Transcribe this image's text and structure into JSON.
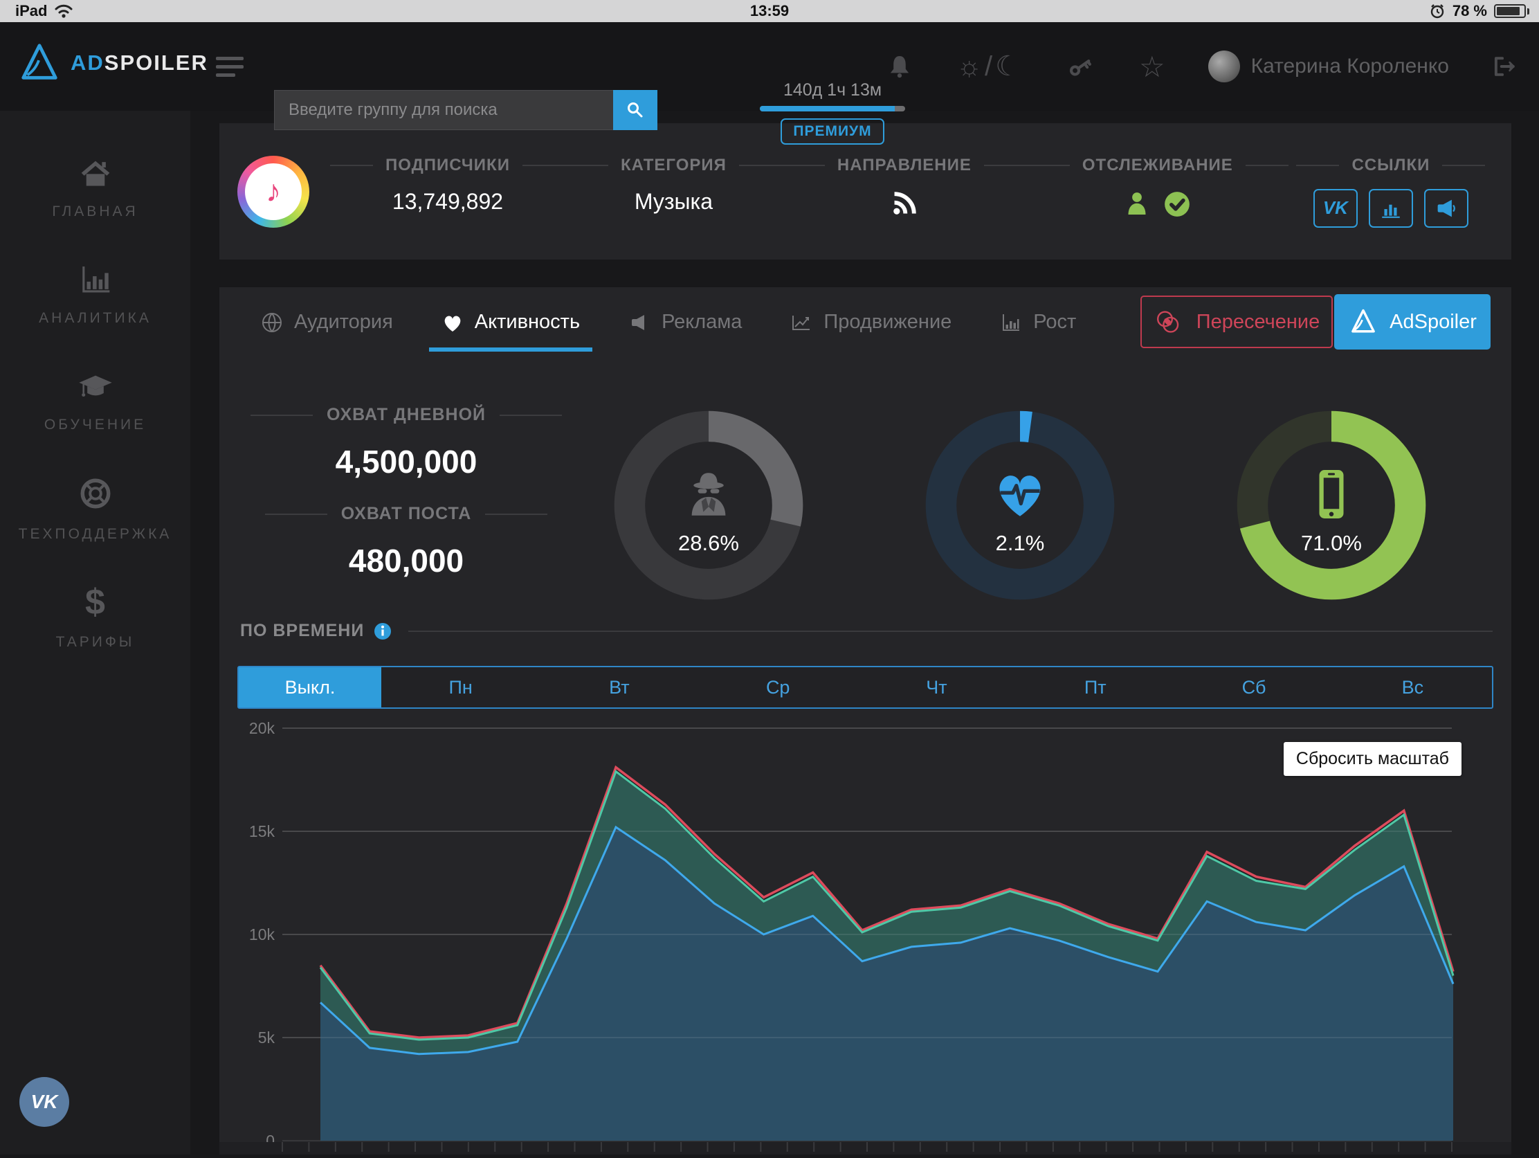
{
  "status_bar": {
    "device": "iPad",
    "time": "13:59",
    "battery": "78 %"
  },
  "navbar": {
    "brand": {
      "prefix": "AD",
      "suffix": "SPOILER"
    },
    "search": {
      "placeholder": "Введите группу для поиска"
    },
    "premium": {
      "time_left": "140д 1ч 13м",
      "badge": "ПРЕМИУМ",
      "progress_percent": 93
    },
    "theme": {
      "sun_glyph": "☼",
      "divider": "/",
      "moon_glyph": "☾"
    },
    "star_glyph": "☆",
    "user_name": "Катерина Короленко"
  },
  "sidebar": {
    "items": [
      {
        "label": "ГЛАВНАЯ",
        "icon": "home-icon"
      },
      {
        "label": "АНАЛИТИКА",
        "icon": "analytics-icon"
      },
      {
        "label": "ОБУЧЕНИЕ",
        "icon": "education-icon"
      },
      {
        "label": "ТЕХПОДДЕРЖКА",
        "icon": "support-icon"
      },
      {
        "label": "ТАРИФЫ",
        "icon": "dollar-icon",
        "icon_glyph": "$"
      }
    ],
    "vk_fab_text": "VK"
  },
  "group_header": {
    "avatar_glyph": "♪",
    "subscribers": {
      "label": "ПОДПИСЧИКИ",
      "value": "13,749,892"
    },
    "category": {
      "label": "КАТЕГОРИЯ",
      "value": "Музыка"
    },
    "direction": {
      "label": "НАПРАВЛЕНИЕ",
      "icon": "rss-icon"
    },
    "tracking": {
      "label": "ОТСЛЕЖИВАНИЕ",
      "icons": [
        "person-icon",
        "check-circle-icon"
      ]
    },
    "links": {
      "label": "ССЫЛКИ",
      "icons": [
        "vk-icon",
        "bar-chart-icon",
        "megaphone-icon"
      ],
      "vk_text": "VK"
    }
  },
  "tabs": {
    "items": [
      {
        "label": "Аудитория",
        "icon": "globe-icon",
        "active": false
      },
      {
        "label": "Активность",
        "icon": "heart-icon",
        "active": true
      },
      {
        "label": "Реклама",
        "icon": "megaphone-icon",
        "active": false
      },
      {
        "label": "Продвижение",
        "icon": "promotion-chart-icon",
        "active": false
      },
      {
        "label": "Рост",
        "icon": "growth-chart-icon",
        "active": false
      }
    ],
    "intersection_button": "Пересечение",
    "adspoiler_button": "AdSpoiler"
  },
  "activity": {
    "daily_reach": {
      "label": "ОХВАТ ДНЕВНОЙ",
      "value": "4,500,000"
    },
    "post_reach": {
      "label": "ОХВАТ ПОСТА",
      "value": "480,000"
    },
    "by_time_label": "ПО ВРЕМЕНИ",
    "time_tabs": {
      "active": "Выкл.",
      "items": [
        "Выкл.",
        "Пн",
        "Вт",
        "Ср",
        "Чт",
        "Пт",
        "Сб",
        "Вс"
      ]
    },
    "reset_zoom_button": "Сбросить масштаб"
  },
  "chart_data": [
    {
      "type": "area",
      "title": "ПО ВРЕМЕНИ",
      "xlabel": "",
      "ylabel": "",
      "ylim": [
        0,
        20000
      ],
      "ytick_labels": [
        "0",
        "5k",
        "10k",
        "15k",
        "20k"
      ],
      "grid": true,
      "legend": "none",
      "series": [
        {
          "name": "total-reach-line",
          "color": "#dd4b5c",
          "fill": "none",
          "values": [
            8500,
            5300,
            5000,
            5100,
            5700,
            11500,
            18100,
            16300,
            13900,
            11800,
            13000,
            10200,
            11200,
            11400,
            12200,
            11500,
            10500,
            9800,
            14000,
            12800,
            12300,
            14300,
            16000,
            8200
          ]
        },
        {
          "name": "full-reach-area",
          "color": "#4fc8a6",
          "fill": "#2d5a53",
          "values": [
            8400,
            5200,
            4900,
            5000,
            5600,
            11300,
            17900,
            16100,
            13700,
            11600,
            12800,
            10100,
            11100,
            11300,
            12100,
            11400,
            10400,
            9700,
            13800,
            12600,
            12200,
            14100,
            15800,
            8000
          ]
        },
        {
          "name": "viral-reach-area",
          "color": "#3fa9ec",
          "fill": "#2c4f66",
          "values": [
            6700,
            4500,
            4200,
            4300,
            4800,
            9800,
            15200,
            13600,
            11500,
            10000,
            10900,
            8700,
            9400,
            9600,
            10300,
            9700,
            8900,
            8200,
            11600,
            10600,
            10200,
            11900,
            13300,
            7600
          ]
        }
      ]
    },
    {
      "type": "donut-group",
      "donuts": [
        {
          "name": "spy-donut",
          "icon": "spy-icon",
          "value": 28.6,
          "label": "28.6%",
          "color": "#68686b",
          "track": "#39393c"
        },
        {
          "name": "activity-donut",
          "icon": "heart-pulse-icon",
          "value": 2.1,
          "label": "2.1%",
          "color": "#36a1e8",
          "track": "#233140"
        },
        {
          "name": "mobile-donut",
          "icon": "smartphone-icon",
          "value": 71.0,
          "label": "71.0%",
          "color": "#92c353",
          "track": "#31352b"
        }
      ]
    }
  ]
}
